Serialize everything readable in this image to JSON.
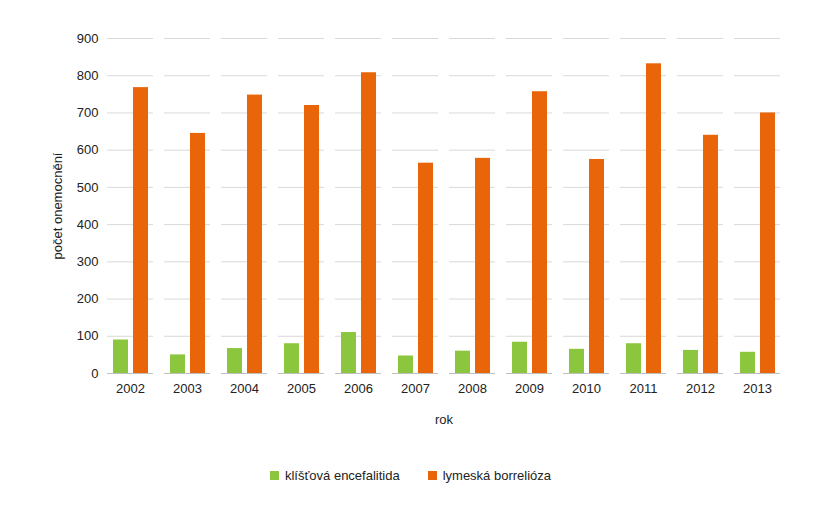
{
  "chart_data": {
    "type": "bar",
    "x_label": "rok",
    "y_label": "počet onemocnění",
    "categories": [
      "2002",
      "2003",
      "2004",
      "2005",
      "2006",
      "2007",
      "2008",
      "2009",
      "2010",
      "2011",
      "2012",
      "2013"
    ],
    "series": [
      {
        "name": "klíšťová encefalitida",
        "color": "#8cc63f",
        "values": [
          90,
          50,
          67,
          80,
          110,
          47,
          60,
          84,
          65,
          80,
          62,
          57
        ]
      },
      {
        "name": "lymeská borrelióza",
        "color": "#e8650a",
        "values": [
          768,
          645,
          748,
          720,
          808,
          565,
          578,
          757,
          575,
          832,
          640,
          700
        ]
      }
    ],
    "ylim": [
      0,
      900
    ],
    "yticks": [
      0,
      100,
      200,
      300,
      400,
      500,
      600,
      700,
      800,
      900
    ],
    "grid": true,
    "legend": "bottom"
  }
}
